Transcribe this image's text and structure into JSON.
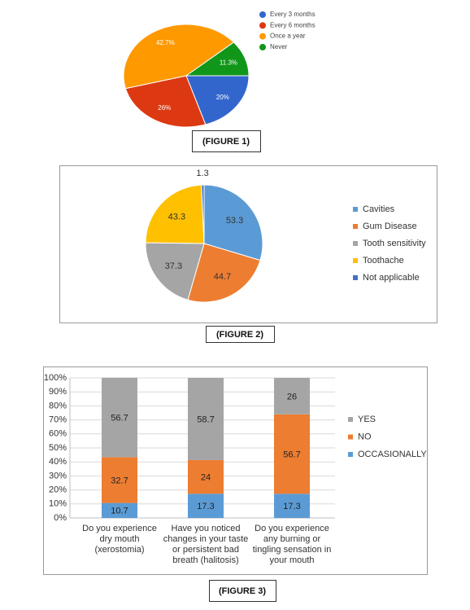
{
  "chart_data": [
    {
      "type": "pie",
      "caption": "(FIGURE 1)",
      "legend": "right",
      "categories": [
        "Every 3 months",
        "Every 6 months",
        "Once a year",
        "Never"
      ],
      "values": [
        20,
        26,
        42.7,
        11.3
      ],
      "value_labels": [
        "20%",
        "26%",
        "42.7%",
        "11.3%"
      ],
      "colors": [
        "#3366cc",
        "#dc3912",
        "#ff9900",
        "#109618"
      ]
    },
    {
      "type": "pie",
      "caption": "(FIGURE 2)",
      "legend": "right",
      "categories": [
        "Cavities",
        "Gum Disease",
        "Tooth sensitivity",
        "Toothache",
        "Not applicable"
      ],
      "values": [
        53.3,
        44.7,
        37.3,
        43.3,
        1.3
      ],
      "colors": [
        "#5b9bd5",
        "#ed7d31",
        "#a5a5a5",
        "#ffc000",
        "#4472c4"
      ]
    },
    {
      "type": "bar",
      "stacked": true,
      "caption": "(FIGURE 3)",
      "legend": "right",
      "grid": true,
      "categories": [
        "Do you experience dry mouth (xerostomia)",
        "Have you noticed changes in your taste or persistent bad breath (halitosis)",
        "Do you experience any burning or tingling sensation in your mouth"
      ],
      "series": [
        {
          "name": "OCCASIONALLY",
          "color": "#5b9bd5",
          "values": [
            10.7,
            17.3,
            17.3
          ]
        },
        {
          "name": "NO",
          "color": "#ed7d31",
          "values": [
            32.7,
            24,
            56.7
          ]
        },
        {
          "name": "YES",
          "color": "#a5a5a5",
          "values": [
            56.7,
            58.7,
            26
          ]
        }
      ],
      "ylim": [
        0,
        100
      ],
      "yticks": [
        {
          "value": 0,
          "label": "0%"
        },
        {
          "value": 10,
          "label": "10%"
        },
        {
          "value": 20,
          "label": "20%"
        },
        {
          "value": 30,
          "label": "30%"
        },
        {
          "value": 40,
          "label": "40%"
        },
        {
          "value": 50,
          "label": "50%"
        },
        {
          "value": 60,
          "label": "60%"
        },
        {
          "value": 70,
          "label": "70%"
        },
        {
          "value": 80,
          "label": "80%"
        },
        {
          "value": 90,
          "label": "90%"
        },
        {
          "value": 100,
          "label": "100%"
        }
      ]
    }
  ]
}
